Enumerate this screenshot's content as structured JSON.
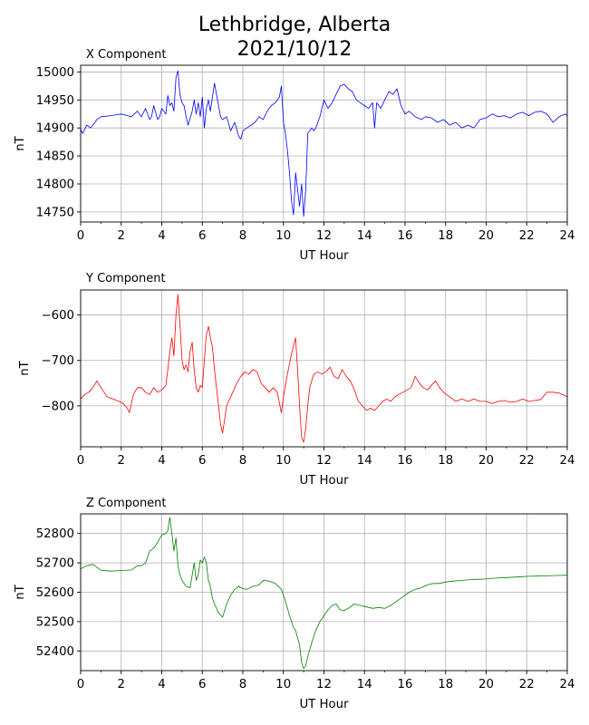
{
  "title_line1": "Lethbridge, Alberta",
  "title_line2": "2021/10/12",
  "chart_data": [
    {
      "type": "line",
      "title": "X Component",
      "xlabel": "UT Hour",
      "ylabel": "nT",
      "color": "#0000ff",
      "grid": true,
      "xlim": [
        0,
        24
      ],
      "ylim": [
        14732,
        15012
      ],
      "xticks": [
        0,
        2,
        4,
        6,
        8,
        10,
        12,
        14,
        16,
        18,
        20,
        22,
        24
      ],
      "yticks": [
        14750,
        14800,
        14850,
        14900,
        14950,
        15000
      ],
      "x": [
        0,
        0.1,
        0.3,
        0.5,
        0.8,
        1.0,
        1.5,
        2.0,
        2.5,
        2.8,
        3.0,
        3.2,
        3.4,
        3.5,
        3.6,
        3.8,
        3.9,
        4.0,
        4.2,
        4.3,
        4.4,
        4.5,
        4.6,
        4.7,
        4.8,
        4.9,
        5.0,
        5.1,
        5.2,
        5.3,
        5.5,
        5.6,
        5.7,
        5.8,
        5.9,
        6.0,
        6.1,
        6.2,
        6.3,
        6.4,
        6.5,
        6.6,
        6.7,
        6.8,
        6.9,
        7.0,
        7.2,
        7.4,
        7.6,
        7.8,
        7.9,
        8.0,
        8.2,
        8.4,
        8.6,
        8.8,
        9.0,
        9.2,
        9.4,
        9.6,
        9.8,
        9.9,
        10.0,
        10.1,
        10.2,
        10.3,
        10.4,
        10.5,
        10.6,
        10.7,
        10.8,
        10.9,
        11.0,
        11.1,
        11.2,
        11.3,
        11.4,
        11.5,
        11.6,
        11.8,
        12.0,
        12.2,
        12.4,
        12.6,
        12.8,
        13.0,
        13.2,
        13.4,
        13.6,
        13.8,
        14.0,
        14.2,
        14.4,
        14.5,
        14.6,
        14.8,
        15.0,
        15.2,
        15.4,
        15.6,
        15.8,
        16.0,
        16.2,
        16.5,
        16.8,
        17.0,
        17.3,
        17.6,
        17.9,
        18.2,
        18.5,
        18.8,
        19.1,
        19.4,
        19.7,
        20.0,
        20.3,
        20.6,
        20.9,
        21.2,
        21.5,
        21.8,
        22.1,
        22.4,
        22.7,
        23.0,
        23.3,
        23.6,
        23.9,
        24.0
      ],
      "y": [
        14898,
        14890,
        14905,
        14900,
        14915,
        14920,
        14922,
        14925,
        14920,
        14930,
        14920,
        14935,
        14915,
        14920,
        14940,
        14915,
        14920,
        14935,
        14925,
        14958,
        14940,
        14945,
        14930,
        14990,
        15002,
        14960,
        14945,
        14940,
        14920,
        14905,
        14930,
        14950,
        14925,
        14945,
        14920,
        14955,
        14900,
        14935,
        14950,
        14930,
        14955,
        14980,
        14960,
        14940,
        14920,
        14915,
        14920,
        14895,
        14910,
        14885,
        14880,
        14895,
        14900,
        14905,
        14910,
        14920,
        14915,
        14930,
        14940,
        14945,
        14955,
        14975,
        14910,
        14890,
        14860,
        14820,
        14770,
        14745,
        14820,
        14790,
        14760,
        14800,
        14742,
        14790,
        14890,
        14895,
        14900,
        14895,
        14900,
        14920,
        14950,
        14935,
        14945,
        14960,
        14975,
        14978,
        14970,
        14965,
        14950,
        14945,
        14940,
        14935,
        14945,
        14900,
        14945,
        14935,
        14950,
        14965,
        14960,
        14970,
        14940,
        14925,
        14930,
        14920,
        14915,
        14920,
        14918,
        14910,
        14915,
        14905,
        14910,
        14900,
        14905,
        14900,
        14915,
        14918,
        14925,
        14920,
        14922,
        14918,
        14925,
        14928,
        14922,
        14928,
        14930,
        14925,
        14910,
        14920,
        14925,
        14922
      ]
    },
    {
      "type": "line",
      "title": "Y Component",
      "xlabel": "UT Hour",
      "ylabel": "nT",
      "color": "#ff0000",
      "grid": true,
      "xlim": [
        0,
        24
      ],
      "ylim": [
        -890,
        -545
      ],
      "xticks": [
        0,
        2,
        4,
        6,
        8,
        10,
        12,
        14,
        16,
        18,
        20,
        22,
        24
      ],
      "yticks": [
        -600,
        -700,
        -800
      ],
      "x": [
        0,
        0.2,
        0.4,
        0.6,
        0.8,
        1.0,
        1.3,
        1.6,
        1.9,
        2.1,
        2.3,
        2.4,
        2.6,
        2.8,
        3.0,
        3.2,
        3.4,
        3.6,
        3.8,
        4.0,
        4.2,
        4.3,
        4.4,
        4.5,
        4.6,
        4.7,
        4.8,
        4.9,
        5.0,
        5.1,
        5.2,
        5.3,
        5.4,
        5.5,
        5.6,
        5.7,
        5.8,
        5.9,
        6.0,
        6.1,
        6.2,
        6.3,
        6.4,
        6.5,
        6.6,
        6.7,
        6.8,
        6.9,
        7.0,
        7.1,
        7.2,
        7.3,
        7.5,
        7.7,
        7.9,
        8.1,
        8.3,
        8.5,
        8.7,
        8.9,
        9.1,
        9.3,
        9.5,
        9.7,
        9.9,
        10.0,
        10.2,
        10.4,
        10.6,
        10.7,
        10.8,
        10.9,
        11.0,
        11.1,
        11.2,
        11.3,
        11.5,
        11.7,
        11.9,
        12.1,
        12.3,
        12.5,
        12.7,
        12.9,
        13.1,
        13.3,
        13.5,
        13.7,
        13.9,
        14.1,
        14.3,
        14.5,
        14.7,
        14.9,
        15.1,
        15.3,
        15.5,
        15.7,
        15.9,
        16.1,
        16.3,
        16.5,
        16.7,
        16.9,
        17.1,
        17.3,
        17.5,
        17.7,
        17.9,
        18.2,
        18.5,
        18.8,
        19.1,
        19.4,
        19.7,
        20.0,
        20.3,
        20.6,
        20.9,
        21.2,
        21.5,
        21.8,
        22.1,
        22.4,
        22.7,
        23.0,
        23.3,
        23.6,
        23.9,
        24.0
      ],
      "y": [
        -785,
        -775,
        -770,
        -760,
        -745,
        -760,
        -780,
        -785,
        -790,
        -795,
        -805,
        -815,
        -775,
        -760,
        -760,
        -770,
        -775,
        -760,
        -770,
        -765,
        -755,
        -720,
        -680,
        -650,
        -690,
        -600,
        -555,
        -620,
        -700,
        -720,
        -710,
        -725,
        -680,
        -660,
        -720,
        -760,
        -770,
        -755,
        -760,
        -700,
        -645,
        -625,
        -650,
        -670,
        -720,
        -760,
        -800,
        -840,
        -860,
        -830,
        -800,
        -790,
        -770,
        -750,
        -735,
        -725,
        -730,
        -720,
        -725,
        -750,
        -760,
        -770,
        -760,
        -770,
        -815,
        -780,
        -730,
        -685,
        -650,
        -720,
        -800,
        -870,
        -880,
        -850,
        -800,
        -760,
        -730,
        -725,
        -730,
        -725,
        -715,
        -735,
        -740,
        -720,
        -735,
        -745,
        -765,
        -790,
        -800,
        -810,
        -805,
        -810,
        -800,
        -790,
        -785,
        -790,
        -780,
        -775,
        -770,
        -765,
        -760,
        -735,
        -750,
        -760,
        -765,
        -755,
        -745,
        -760,
        -770,
        -780,
        -790,
        -785,
        -790,
        -785,
        -790,
        -790,
        -795,
        -790,
        -788,
        -792,
        -790,
        -785,
        -790,
        -788,
        -786,
        -770,
        -770,
        -772,
        -778,
        -780
      ]
    },
    {
      "type": "line",
      "title": "Z Component",
      "xlabel": "UT Hour",
      "ylabel": "nT",
      "color": "#008000",
      "grid": true,
      "xlim": [
        0,
        24
      ],
      "ylim": [
        52333,
        52867
      ],
      "xticks": [
        0,
        2,
        4,
        6,
        8,
        10,
        12,
        14,
        16,
        18,
        20,
        22,
        24
      ],
      "yticks": [
        52400,
        52500,
        52600,
        52700,
        52800
      ],
      "x": [
        0,
        0.3,
        0.6,
        1.0,
        1.5,
        2.0,
        2.5,
        2.8,
        3.0,
        3.2,
        3.4,
        3.6,
        3.8,
        4.0,
        4.2,
        4.3,
        4.4,
        4.5,
        4.6,
        4.7,
        4.8,
        4.9,
        5.0,
        5.2,
        5.4,
        5.6,
        5.7,
        5.8,
        5.9,
        6.0,
        6.1,
        6.2,
        6.3,
        6.4,
        6.5,
        6.6,
        6.8,
        7.0,
        7.2,
        7.4,
        7.6,
        7.8,
        8.0,
        8.2,
        8.5,
        8.8,
        9.0,
        9.3,
        9.6,
        9.9,
        10.1,
        10.3,
        10.5,
        10.6,
        10.8,
        10.9,
        11.0,
        11.1,
        11.2,
        11.4,
        11.6,
        11.8,
        12.0,
        12.2,
        12.4,
        12.6,
        12.8,
        13.0,
        13.2,
        13.5,
        13.8,
        14.1,
        14.4,
        14.7,
        15.0,
        15.3,
        15.6,
        15.9,
        16.2,
        16.5,
        16.8,
        17.1,
        17.4,
        17.7,
        18.0,
        18.4,
        18.8,
        19.2,
        19.6,
        20.0,
        20.5,
        21.0,
        21.5,
        22.0,
        22.5,
        23.0,
        23.5,
        24.0
      ],
      "y": [
        52680,
        52690,
        52695,
        52675,
        52672,
        52674,
        52676,
        52690,
        52690,
        52700,
        52740,
        52750,
        52770,
        52795,
        52800,
        52810,
        52855,
        52800,
        52740,
        52785,
        52690,
        52660,
        52640,
        52620,
        52615,
        52700,
        52640,
        52660,
        52710,
        52700,
        52720,
        52700,
        52640,
        52620,
        52580,
        52560,
        52530,
        52515,
        52560,
        52590,
        52610,
        52620,
        52612,
        52610,
        52620,
        52625,
        52640,
        52638,
        52630,
        52610,
        52570,
        52520,
        52480,
        52470,
        52420,
        52360,
        52340,
        52350,
        52380,
        52430,
        52470,
        52500,
        52520,
        52540,
        52555,
        52560,
        52540,
        52538,
        52545,
        52560,
        52555,
        52550,
        52545,
        52548,
        52545,
        52555,
        52570,
        52585,
        52600,
        52610,
        52615,
        52625,
        52630,
        52630,
        52635,
        52638,
        52640,
        52643,
        52644,
        52645,
        52648,
        52650,
        52652,
        52654,
        52655,
        52656,
        52657,
        52658
      ]
    }
  ]
}
